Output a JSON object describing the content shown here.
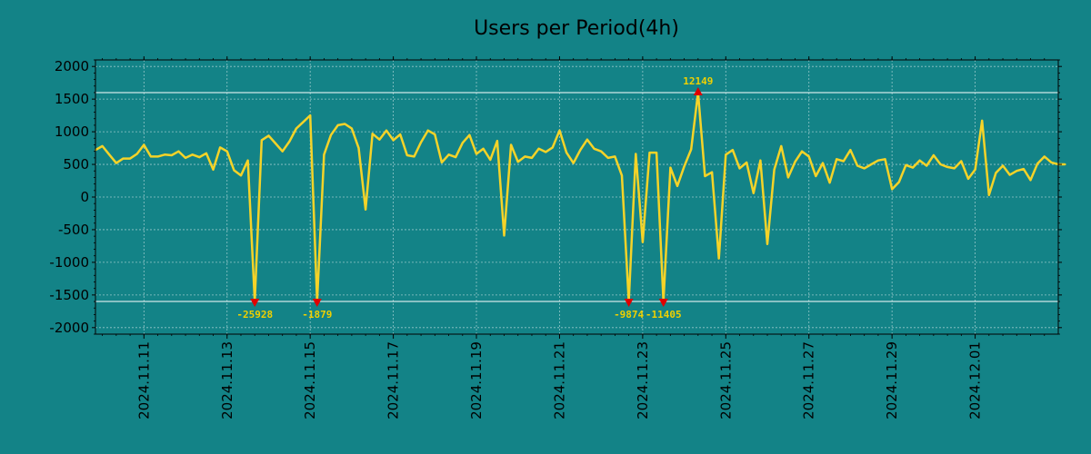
{
  "chart_data": {
    "type": "line",
    "title": "Users per Period(4h)",
    "xlabel": "",
    "ylabel": "",
    "ylim": [
      -2100,
      2100
    ],
    "xlim": [
      0,
      139
    ],
    "grid": true,
    "colors": {
      "background": "#138387",
      "line": "#f5d328",
      "marker": "#e00000",
      "threshold": "#ffffff",
      "annotation": "#f0d000"
    },
    "y_ticks": [
      2000,
      1500,
      1000,
      500,
      0,
      -500,
      -1000,
      -1500,
      -2000
    ],
    "x_ticks": [
      {
        "x": 7,
        "label": "2024.11.11"
      },
      {
        "x": 19,
        "label": "2024.11.13"
      },
      {
        "x": 31,
        "label": "2024.11.15"
      },
      {
        "x": 43,
        "label": "2024.11.17"
      },
      {
        "x": 55,
        "label": "2024.11.19"
      },
      {
        "x": 67,
        "label": "2024.11.21"
      },
      {
        "x": 79,
        "label": "2024.11.23"
      },
      {
        "x": 91,
        "label": "2024.11.25"
      },
      {
        "x": 103,
        "label": "2024.11.27"
      },
      {
        "x": 115,
        "label": "2024.11.29"
      },
      {
        "x": 127,
        "label": "2024.12.01"
      }
    ],
    "thresholds": [
      1600,
      -1600
    ],
    "series": [
      {
        "name": "Users per Period(4h)",
        "values": [
          720,
          780,
          650,
          520,
          590,
          590,
          660,
          800,
          620,
          620,
          650,
          640,
          700,
          600,
          650,
          610,
          670,
          420,
          760,
          700,
          410,
          330,
          560,
          -1600,
          870,
          940,
          820,
          700,
          850,
          1050,
          1150,
          1250,
          -1600,
          650,
          950,
          1100,
          1120,
          1050,
          750,
          -190,
          970,
          880,
          1020,
          870,
          960,
          640,
          620,
          840,
          1020,
          960,
          530,
          650,
          610,
          830,
          950,
          660,
          740,
          570,
          860,
          -590,
          800,
          540,
          620,
          600,
          740,
          690,
          760,
          1020,
          680,
          520,
          720,
          880,
          740,
          700,
          600,
          620,
          330,
          -1600,
          660,
          -690,
          680,
          680,
          -1600,
          450,
          170,
          470,
          730,
          1600,
          320,
          380,
          -940,
          650,
          720,
          440,
          530,
          60,
          560,
          -720,
          420,
          780,
          300,
          540,
          700,
          620,
          320,
          520,
          220,
          580,
          550,
          720,
          480,
          440,
          500,
          560,
          580,
          120,
          230,
          490,
          450,
          560,
          480,
          640,
          500,
          460,
          440,
          550,
          280,
          420,
          1170,
          30,
          370,
          480,
          340,
          400,
          430,
          260,
          510,
          620,
          530,
          500,
          500
        ]
      }
    ],
    "markers": [
      {
        "x": 23,
        "y": -1600,
        "label": "-25928"
      },
      {
        "x": 32,
        "y": -1600,
        "label": "-1879"
      },
      {
        "x": 77,
        "y": -1600,
        "label": "-9874"
      },
      {
        "x": 82,
        "y": -1600,
        "label": "-11405"
      },
      {
        "x": 87,
        "y": 1600,
        "label": "12149"
      }
    ]
  }
}
